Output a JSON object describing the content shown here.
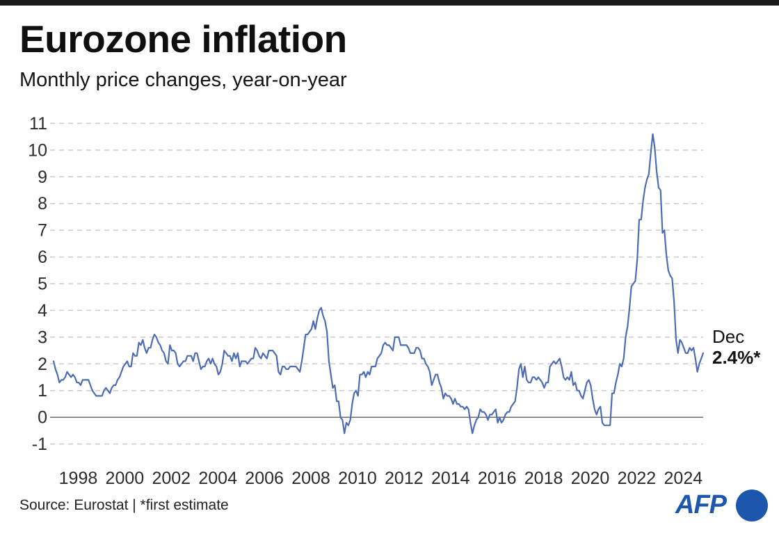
{
  "header": {
    "title": "Eurozone inflation",
    "subtitle": "Monthly price changes, year-on-year"
  },
  "annotation": {
    "line1": "Dec",
    "line2": "2.4%*"
  },
  "footer": {
    "source": "Source: Eurostat | *first estimate",
    "logo_text": "AFP"
  },
  "colors": {
    "line": "#4d6cb3",
    "grid": "#cbcbcb",
    "zero_line": "#767676",
    "tick_text": "#2b2b2b",
    "afp_blue": "#1d56ad",
    "top_bar": "#1a1a1a"
  },
  "chart_data": {
    "type": "line",
    "title": "Eurozone inflation",
    "subtitle": "Monthly price changes, year-on-year",
    "frequency": "monthly",
    "x_monthly_from": "1997-01",
    "x_monthly_to": "2024-12",
    "ylim": [
      -1,
      11
    ],
    "y_ticks": [
      -1,
      0,
      1,
      2,
      3,
      4,
      5,
      6,
      7,
      8,
      9,
      10,
      11
    ],
    "x_tick_years": [
      1998,
      2000,
      2002,
      2004,
      2006,
      2008,
      2010,
      2012,
      2014,
      2016,
      2018,
      2020,
      2022,
      2024
    ],
    "grid": "dashed horizontal gridlines, solid zero line",
    "legend_position": "none",
    "last_point": {
      "label": "Dec",
      "value": 2.4,
      "value_label": "2.4%*"
    },
    "series": [
      {
        "name": "Eurozone inflation, year-on-year %",
        "start_year": 1997,
        "values": [
          2.1,
          1.8,
          1.6,
          1.3,
          1.4,
          1.4,
          1.5,
          1.7,
          1.6,
          1.5,
          1.6,
          1.5,
          1.3,
          1.3,
          1.2,
          1.4,
          1.4,
          1.4,
          1.4,
          1.2,
          1.0,
          0.9,
          0.8,
          0.8,
          0.8,
          0.8,
          1.0,
          1.1,
          1.0,
          0.9,
          1.1,
          1.2,
          1.2,
          1.4,
          1.5,
          1.7,
          1.9,
          2.0,
          2.1,
          1.9,
          1.9,
          2.4,
          2.3,
          2.3,
          2.8,
          2.7,
          2.9,
          2.6,
          2.4,
          2.6,
          2.6,
          2.9,
          3.1,
          3.0,
          2.8,
          2.7,
          2.5,
          2.4,
          2.1,
          2.0,
          2.7,
          2.5,
          2.5,
          2.4,
          2.0,
          1.9,
          2.0,
          2.1,
          2.1,
          2.3,
          2.3,
          2.3,
          2.1,
          2.4,
          2.4,
          2.1,
          1.8,
          1.9,
          1.9,
          2.1,
          2.2,
          2.0,
          2.2,
          2.0,
          1.9,
          1.6,
          1.7,
          2.0,
          2.5,
          2.4,
          2.3,
          2.3,
          2.1,
          2.4,
          2.2,
          2.4,
          1.9,
          2.1,
          2.1,
          2.1,
          2.0,
          2.1,
          2.2,
          2.2,
          2.6,
          2.5,
          2.3,
          2.2,
          2.4,
          2.3,
          2.2,
          2.5,
          2.5,
          2.5,
          2.4,
          2.3,
          1.7,
          1.6,
          1.9,
          1.9,
          1.8,
          1.8,
          1.9,
          1.9,
          1.9,
          1.9,
          1.8,
          1.7,
          2.1,
          2.6,
          3.1,
          3.1,
          3.2,
          3.3,
          3.6,
          3.3,
          3.7,
          4.0,
          4.1,
          3.8,
          3.6,
          3.2,
          2.1,
          1.6,
          1.1,
          1.2,
          0.6,
          0.6,
          0.0,
          -0.1,
          -0.6,
          -0.2,
          -0.3,
          -0.1,
          0.5,
          0.9,
          1.0,
          0.8,
          1.6,
          1.6,
          1.7,
          1.5,
          1.7,
          1.6,
          1.9,
          1.9,
          1.9,
          2.2,
          2.3,
          2.4,
          2.7,
          2.8,
          2.7,
          2.7,
          2.6,
          2.5,
          3.0,
          3.0,
          3.0,
          2.7,
          2.7,
          2.7,
          2.7,
          2.6,
          2.4,
          2.4,
          2.4,
          2.6,
          2.6,
          2.5,
          2.2,
          2.2,
          2.0,
          1.9,
          1.7,
          1.2,
          1.4,
          1.6,
          1.6,
          1.3,
          1.1,
          0.7,
          0.9,
          0.8,
          0.8,
          0.7,
          0.5,
          0.7,
          0.5,
          0.5,
          0.4,
          0.4,
          0.3,
          0.4,
          0.3,
          -0.2,
          -0.6,
          -0.3,
          -0.1,
          0.0,
          0.3,
          0.2,
          0.2,
          0.1,
          -0.1,
          0.1,
          0.1,
          0.2,
          0.3,
          -0.2,
          0.0,
          -0.2,
          -0.1,
          0.1,
          0.2,
          0.2,
          0.4,
          0.5,
          0.6,
          1.1,
          1.8,
          2.0,
          1.5,
          1.9,
          1.4,
          1.3,
          1.3,
          1.5,
          1.5,
          1.4,
          1.5,
          1.4,
          1.3,
          1.1,
          1.3,
          1.3,
          1.9,
          2.0,
          2.1,
          2.0,
          2.1,
          2.2,
          1.9,
          1.5,
          1.4,
          1.5,
          1.4,
          1.7,
          1.2,
          1.3,
          1.0,
          1.0,
          0.8,
          0.7,
          1.0,
          1.3,
          1.4,
          1.2,
          0.7,
          0.3,
          0.1,
          0.3,
          0.4,
          -0.2,
          -0.3,
          -0.3,
          -0.3,
          -0.3,
          0.9,
          0.9,
          1.3,
          1.6,
          2.0,
          1.9,
          2.2,
          3.0,
          3.4,
          4.1,
          4.9,
          5.0,
          5.1,
          5.9,
          7.4,
          7.4,
          8.1,
          8.6,
          8.9,
          9.1,
          9.9,
          10.6,
          10.1,
          9.2,
          8.6,
          8.5,
          6.9,
          7.0,
          6.1,
          5.5,
          5.3,
          5.2,
          4.3,
          2.9,
          2.4,
          2.9,
          2.8,
          2.6,
          2.4,
          2.4,
          2.6,
          2.5,
          2.6,
          2.2,
          1.7,
          2.0,
          2.2,
          2.4
        ]
      }
    ]
  }
}
